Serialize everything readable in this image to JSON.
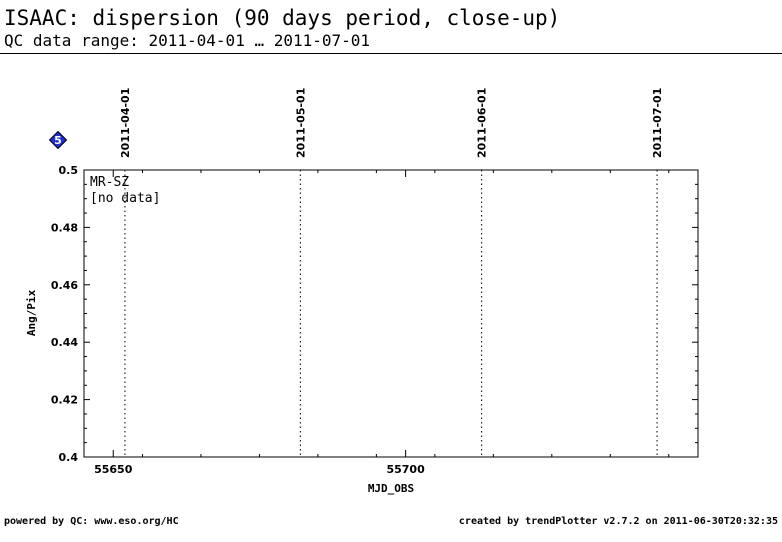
{
  "header": {
    "title": "ISAAC: dispersion (90 days period, close-up)",
    "subtitle": "QC data range: 2011-04-01 … 2011-07-01"
  },
  "badge": {
    "label": "5",
    "color": "#1f2fd8"
  },
  "chart_data": {
    "type": "scatter",
    "title": "",
    "xlabel": "MJD_OBS",
    "ylabel": "Ang/Pix",
    "xlim": [
      55645,
      55750
    ],
    "ylim": [
      0.4,
      0.5
    ],
    "x_ticks": [
      55650,
      55700
    ],
    "y_ticks": [
      0.4,
      0.42,
      0.44,
      0.46,
      0.48,
      0.5
    ],
    "y_tick_labels": [
      "0.4",
      "0.42",
      "0.44",
      "0.46",
      "0.48",
      "0.5"
    ],
    "date_markers": [
      {
        "label": "2011-04-01",
        "mjd": 55652
      },
      {
        "label": "2011-05-01",
        "mjd": 55682
      },
      {
        "label": "2011-06-01",
        "mjd": 55713
      },
      {
        "label": "2011-07-01",
        "mjd": 55743
      }
    ],
    "series": [],
    "annotations": [
      "MR-SZ",
      "[no data]"
    ],
    "grid": false
  },
  "footer": {
    "left": "powered by QC: www.eso.org/HC",
    "right": "created by trendPlotter v2.7.2 on 2011-06-30T20:32:35"
  }
}
